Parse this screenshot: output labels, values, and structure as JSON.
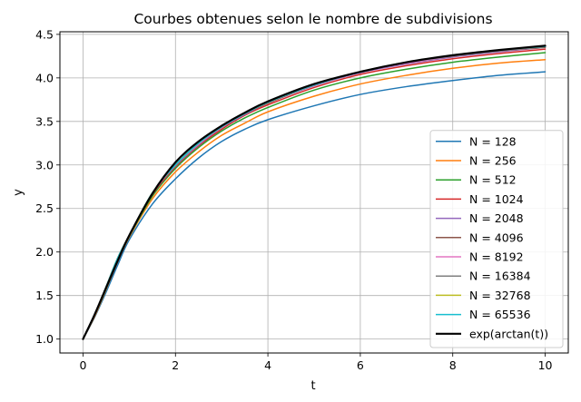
{
  "chart_data": {
    "type": "line",
    "title": "Courbes obtenues selon le nombre de subdivisions",
    "xlabel": "t",
    "ylabel": "y",
    "xlim": [
      -0.5,
      10.5
    ],
    "ylim": [
      0.84,
      4.53
    ],
    "xticks": [
      0,
      2,
      4,
      6,
      8,
      10
    ],
    "yticks": [
      1.0,
      1.5,
      2.0,
      2.5,
      3.0,
      3.5,
      4.0,
      4.5
    ],
    "xtick_labels": [
      "0",
      "2",
      "4",
      "6",
      "8",
      "10"
    ],
    "ytick_labels": [
      "1.0",
      "1.5",
      "2.0",
      "2.5",
      "3.0",
      "3.5",
      "4.0",
      "4.5"
    ],
    "grid": true,
    "legend_position": "lower-right",
    "x": [
      0,
      0.25,
      0.5,
      0.75,
      1,
      1.5,
      2,
      2.5,
      3,
      3.5,
      4,
      5,
      6,
      7,
      8,
      9,
      10
    ],
    "series": [
      {
        "name": "N = 128",
        "color": "#1f77b4",
        "values": [
          1.0,
          1.25,
          1.54,
          1.85,
          2.14,
          2.55,
          2.84,
          3.08,
          3.27,
          3.41,
          3.52,
          3.68,
          3.81,
          3.9,
          3.97,
          4.03,
          4.07
        ]
      },
      {
        "name": "N = 256",
        "color": "#ff7f0e",
        "values": [
          1.0,
          1.26,
          1.57,
          1.89,
          2.17,
          2.61,
          2.92,
          3.15,
          3.34,
          3.48,
          3.61,
          3.79,
          3.93,
          4.03,
          4.11,
          4.17,
          4.21
        ]
      },
      {
        "name": "N = 512",
        "color": "#2ca02c",
        "values": [
          1.0,
          1.27,
          1.58,
          1.91,
          2.18,
          2.64,
          2.96,
          3.2,
          3.39,
          3.54,
          3.66,
          3.86,
          4.0,
          4.1,
          4.18,
          4.24,
          4.29
        ]
      },
      {
        "name": "N = 1024",
        "color": "#d62728",
        "values": [
          1.0,
          1.27,
          1.59,
          1.92,
          2.19,
          2.66,
          2.98,
          3.22,
          3.41,
          3.57,
          3.69,
          3.89,
          4.04,
          4.14,
          4.22,
          4.28,
          4.33
        ]
      },
      {
        "name": "N = 2048",
        "color": "#9467bd",
        "values": [
          1.0,
          1.28,
          1.6,
          1.93,
          2.19,
          2.67,
          2.99,
          3.23,
          3.43,
          3.58,
          3.71,
          3.91,
          4.06,
          4.16,
          4.24,
          4.3,
          4.35
        ]
      },
      {
        "name": "N = 4096",
        "color": "#8c564b",
        "values": [
          1.0,
          1.28,
          1.6,
          1.93,
          2.19,
          2.67,
          3.0,
          3.24,
          3.44,
          3.59,
          3.71,
          3.92,
          4.07,
          4.17,
          4.25,
          4.31,
          4.35
        ]
      },
      {
        "name": "N = 8192",
        "color": "#e377c2",
        "values": [
          1.0,
          1.28,
          1.6,
          1.93,
          2.19,
          2.67,
          3.0,
          3.24,
          3.44,
          3.59,
          3.72,
          3.92,
          4.07,
          4.17,
          4.25,
          4.31,
          4.36
        ]
      },
      {
        "name": "N = 16384",
        "color": "#7f7f7f",
        "values": [
          1.0,
          1.28,
          1.6,
          1.93,
          2.19,
          2.68,
          3.0,
          3.25,
          3.44,
          3.59,
          3.72,
          3.92,
          4.07,
          4.18,
          4.25,
          4.31,
          4.36
        ]
      },
      {
        "name": "N = 32768",
        "color": "#bcbd22",
        "values": [
          1.0,
          1.28,
          1.6,
          1.93,
          2.19,
          2.68,
          3.0,
          3.25,
          3.44,
          3.59,
          3.72,
          3.92,
          4.07,
          4.18,
          4.26,
          4.32,
          4.36
        ]
      },
      {
        "name": "N = 65536",
        "color": "#17becf",
        "values": [
          1.0,
          1.28,
          1.6,
          1.93,
          2.19,
          2.68,
          3.0,
          3.25,
          3.44,
          3.59,
          3.72,
          3.92,
          4.07,
          4.18,
          4.26,
          4.32,
          4.36
        ]
      },
      {
        "name": "exp(arctan(t))",
        "color": "#000000",
        "values": [
          1.0,
          1.28,
          1.59,
          1.9,
          2.19,
          2.67,
          3.03,
          3.27,
          3.45,
          3.6,
          3.73,
          3.93,
          4.07,
          4.18,
          4.26,
          4.32,
          4.37
        ]
      }
    ]
  }
}
